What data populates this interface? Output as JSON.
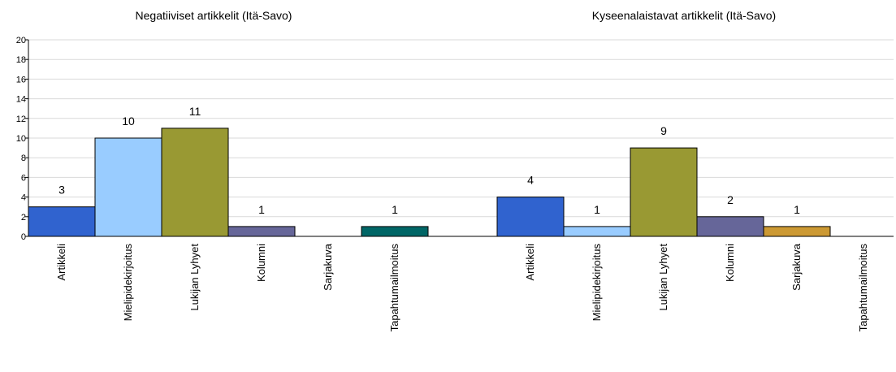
{
  "chart_data": {
    "type": "bar",
    "ylim": [
      0,
      20
    ],
    "yticks": [
      "0",
      "2",
      "4",
      "6",
      "8",
      "10",
      "12",
      "14",
      "16",
      "18",
      "20"
    ],
    "grid": true,
    "legend": "none",
    "categories": [
      "Artikkeli",
      "Mielipidekirjoitus",
      "Lukijan Lyhyet",
      "Kolumni",
      "Sarjakuva",
      "Tapahtumailmoitus"
    ],
    "colors": {
      "Artikkeli": "#3063cf",
      "Mielipidekirjoitus": "#99ccff",
      "Lukijan Lyhyet": "#999933",
      "Kolumni": "#666699",
      "Sarjakuva": "#cc9933",
      "Tapahtumailmoitus": "#006666"
    },
    "groups": [
      {
        "title": "Negatiiviset artikkelit (Itä-Savo)",
        "values": [
          3,
          10,
          11,
          1,
          0,
          1
        ],
        "data_labels": [
          "3",
          "10",
          "11",
          "1",
          "",
          "1"
        ]
      },
      {
        "title": "Kyseenalaistavat artikkelit (Itä-Savo)",
        "values": [
          4,
          1,
          9,
          2,
          1,
          0
        ],
        "data_labels": [
          "4",
          "1",
          "9",
          "2",
          "1",
          ""
        ]
      }
    ]
  }
}
